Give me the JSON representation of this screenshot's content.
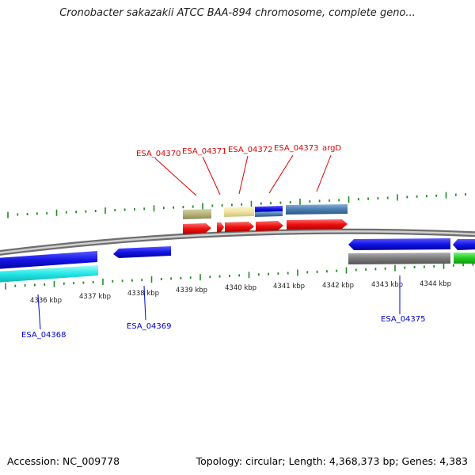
{
  "title": "Cronobacter sakazakii ATCC BAA-894 chromosome, complete geno...",
  "footer": {
    "accession": "Accession: NC_009778",
    "stats": "Topology: circular; Length: 4,368,373 bp; Genes: 4,383"
  },
  "axis_labels": [
    "4336 kbp",
    "4337 kbp",
    "4338 kbp",
    "4339 kbp",
    "4340 kbp",
    "4341 kbp",
    "4342 kbp",
    "4343 kbp",
    "4344 kbp"
  ],
  "gene_labels_top": [
    "ESA_04370",
    "ESA_04371",
    "ESA_04372",
    "ESA_04373",
    "argD"
  ],
  "gene_labels_bottom": [
    "ESA_04368",
    "ESA_04369",
    "ESA_04375"
  ],
  "colors": {
    "tick": "#228b22",
    "backbone": "#8a8a8a",
    "gene_blue": "#1414e6",
    "gene_cyan": "#22e6e6",
    "gene_red": "#ee1111",
    "gene_gray": "#7a7a7a",
    "gene_green": "#22cc22",
    "gene_olive": "#b5b27a",
    "gene_khaki": "#efe3a2",
    "gene_steel": "#4a7db0",
    "label_red": "#e00000",
    "label_blue": "#0000cc"
  }
}
